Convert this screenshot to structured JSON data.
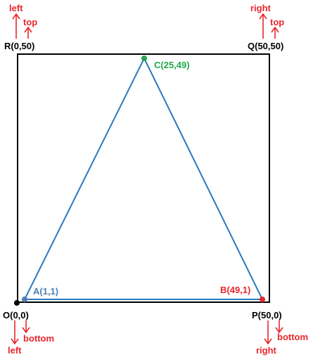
{
  "square": {
    "corners": {
      "O": {
        "label": "O(0,0)"
      },
      "P": {
        "label": "P(50,0)"
      },
      "Q": {
        "label": "Q(50,50)"
      },
      "R": {
        "label": "R(0,50)"
      }
    },
    "border_color": "#000000"
  },
  "triangle": {
    "line_color": "#2a78be",
    "points": {
      "A": {
        "label": "A(1,1)",
        "color": "#4a7fb5"
      },
      "B": {
        "label": "B(49,1)",
        "color": "#e8262c"
      },
      "C": {
        "label": "C(25,49)",
        "color": "#1ea84a"
      }
    }
  },
  "annotations": {
    "color": "#e8262c",
    "top_left": {
      "a": "left",
      "b": "top"
    },
    "top_right": {
      "a": "right",
      "b": "top"
    },
    "bottom_left": {
      "a": "left",
      "b": "bottom"
    },
    "bottom_right": {
      "a": "right",
      "b": "bottom"
    }
  }
}
